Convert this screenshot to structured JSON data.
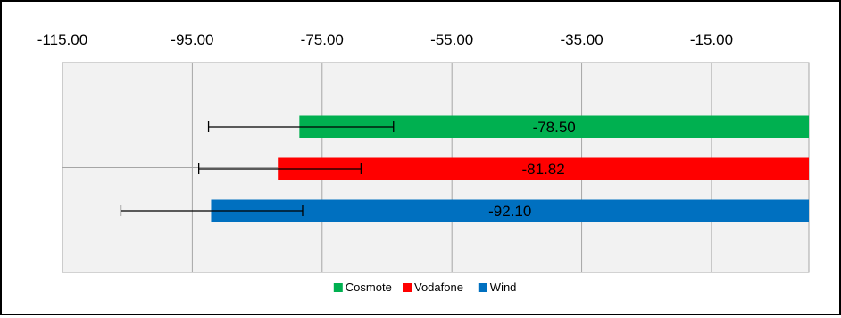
{
  "chart_data": {
    "type": "bar",
    "orientation": "horizontal",
    "axis_position": "top",
    "xlim": [
      -115,
      0
    ],
    "x_ticks": [
      -115,
      -95,
      -75,
      -55,
      -35,
      -15
    ],
    "x_tick_labels": [
      "-115.00",
      "-95.00",
      "-75.00",
      "-55.00",
      "-35.00",
      "-15.00"
    ],
    "grid": true,
    "legend_position": "bottom",
    "series": [
      {
        "name": "Cosmote",
        "value": -78.5,
        "label": "-78.50",
        "error_low": -92.5,
        "error_high": -64.0,
        "color": "#00b050"
      },
      {
        "name": "Vodafone",
        "value": -81.82,
        "label": "-81.82",
        "error_low": -94.0,
        "error_high": -69.0,
        "color": "#ff0000"
      },
      {
        "name": "Wind",
        "value": -92.1,
        "label": "-92.10",
        "error_low": -106.0,
        "error_high": -78.0,
        "color": "#0070c0"
      }
    ]
  }
}
